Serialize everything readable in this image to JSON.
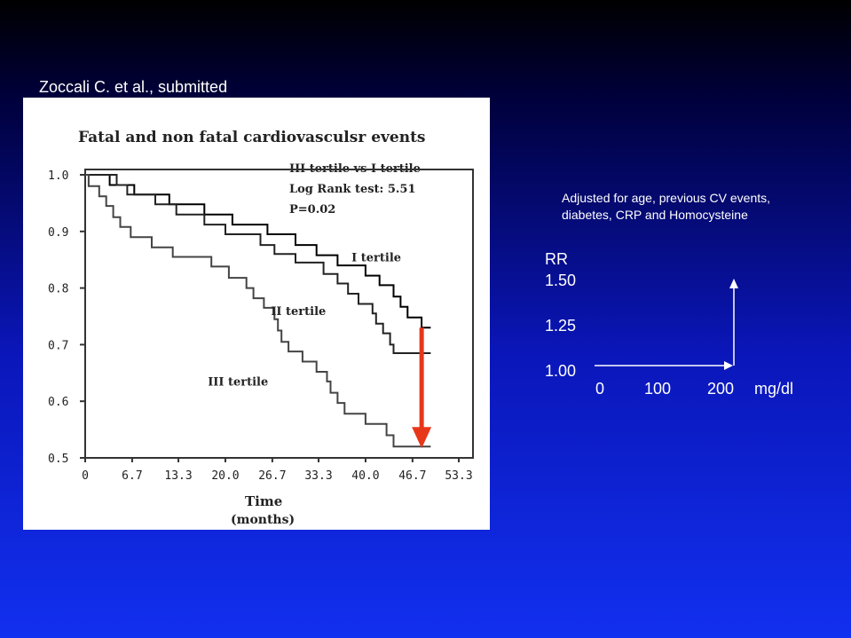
{
  "citation": "Zoccali  C. et al.,  submitted",
  "note_line1": "Adjusted  for age, previous CV events,",
  "note_line2": "diabetes, CRP and Homocysteine",
  "rr_panel": {
    "title": "RR",
    "y_ticks": [
      "1.50",
      "1.25",
      "1.00"
    ],
    "x_ticks": [
      "0",
      "100",
      "200",
      "mg/dl"
    ]
  },
  "chart_data": {
    "type": "line",
    "title": "Fatal and non fatal cardiovasculsr events",
    "xlabel": "Time",
    "xlabel_unit": "(months)",
    "xlim": [
      0,
      53.3
    ],
    "ylim": [
      0.5,
      1.0
    ],
    "x_ticks": [
      "0",
      "6.7",
      "13.3",
      "20.0",
      "26.7",
      "33.3",
      "40.0",
      "46.7",
      "53.3"
    ],
    "y_ticks": [
      "1.0",
      "0.9",
      "0.8",
      "0.7",
      "0.6",
      "0.5"
    ],
    "y_tick_values": [
      1.0,
      0.9,
      0.8,
      0.7,
      0.6,
      0.5
    ],
    "annotation": [
      "III tertile vs I tertile",
      "Log Rank test: 5.51",
      "P=0.02"
    ],
    "series": [
      {
        "name": "I tertile",
        "color": "#000000",
        "points": [
          [
            0,
            1.0
          ],
          [
            3.5,
            1.0
          ],
          [
            3.5,
            0.982
          ],
          [
            7,
            0.982
          ],
          [
            7,
            0.965
          ],
          [
            12,
            0.965
          ],
          [
            12,
            0.948
          ],
          [
            17,
            0.948
          ],
          [
            17,
            0.93
          ],
          [
            21,
            0.93
          ],
          [
            21,
            0.912
          ],
          [
            26,
            0.912
          ],
          [
            26,
            0.895
          ],
          [
            30,
            0.895
          ],
          [
            30,
            0.876
          ],
          [
            33,
            0.876
          ],
          [
            33,
            0.858
          ],
          [
            36,
            0.858
          ],
          [
            36,
            0.84
          ],
          [
            40,
            0.84
          ],
          [
            40,
            0.822
          ],
          [
            42,
            0.822
          ],
          [
            42,
            0.805
          ],
          [
            44,
            0.805
          ],
          [
            44,
            0.785
          ],
          [
            45,
            0.785
          ],
          [
            45,
            0.767
          ],
          [
            46,
            0.767
          ],
          [
            46,
            0.748
          ],
          [
            48,
            0.748
          ],
          [
            48,
            0.73
          ],
          [
            49.3,
            0.73
          ]
        ]
      },
      {
        "name": "II tertile",
        "color": "#222222",
        "points": [
          [
            0,
            1.0
          ],
          [
            4.5,
            1.0
          ],
          [
            4.5,
            0.982
          ],
          [
            6,
            0.982
          ],
          [
            6,
            0.965
          ],
          [
            10,
            0.965
          ],
          [
            10,
            0.948
          ],
          [
            13,
            0.948
          ],
          [
            13,
            0.93
          ],
          [
            17,
            0.93
          ],
          [
            17,
            0.912
          ],
          [
            20,
            0.912
          ],
          [
            20,
            0.895
          ],
          [
            25,
            0.895
          ],
          [
            25,
            0.876
          ],
          [
            27,
            0.876
          ],
          [
            27,
            0.86
          ],
          [
            30,
            0.86
          ],
          [
            30,
            0.845
          ],
          [
            34,
            0.845
          ],
          [
            34,
            0.825
          ],
          [
            36,
            0.825
          ],
          [
            36,
            0.808
          ],
          [
            37.5,
            0.808
          ],
          [
            37.5,
            0.79
          ],
          [
            39,
            0.79
          ],
          [
            39,
            0.772
          ],
          [
            41,
            0.772
          ],
          [
            41,
            0.755
          ],
          [
            41.5,
            0.755
          ],
          [
            41.5,
            0.737
          ],
          [
            42.5,
            0.737
          ],
          [
            42.5,
            0.72
          ],
          [
            43.5,
            0.72
          ],
          [
            43.5,
            0.7
          ],
          [
            44,
            0.7
          ],
          [
            44,
            0.685
          ],
          [
            49.3,
            0.685
          ]
        ]
      },
      {
        "name": "III tertile",
        "color": "#444444",
        "points": [
          [
            0,
            1.0
          ],
          [
            0.5,
            1.0
          ],
          [
            0.5,
            0.98
          ],
          [
            2,
            0.98
          ],
          [
            2,
            0.962
          ],
          [
            3,
            0.962
          ],
          [
            3,
            0.945
          ],
          [
            4,
            0.945
          ],
          [
            4,
            0.925
          ],
          [
            5,
            0.925
          ],
          [
            5,
            0.908
          ],
          [
            6.5,
            0.908
          ],
          [
            6.5,
            0.89
          ],
          [
            9.5,
            0.89
          ],
          [
            9.5,
            0.872
          ],
          [
            12.5,
            0.872
          ],
          [
            12.5,
            0.855
          ],
          [
            18,
            0.855
          ],
          [
            18,
            0.838
          ],
          [
            20.5,
            0.838
          ],
          [
            20.5,
            0.818
          ],
          [
            23,
            0.818
          ],
          [
            23,
            0.8
          ],
          [
            24,
            0.8
          ],
          [
            24,
            0.782
          ],
          [
            25.5,
            0.782
          ],
          [
            25.5,
            0.765
          ],
          [
            27,
            0.765
          ],
          [
            27,
            0.745
          ],
          [
            27.5,
            0.745
          ],
          [
            27.5,
            0.725
          ],
          [
            28,
            0.725
          ],
          [
            28,
            0.705
          ],
          [
            29,
            0.705
          ],
          [
            29,
            0.688
          ],
          [
            31,
            0.688
          ],
          [
            31,
            0.67
          ],
          [
            33,
            0.67
          ],
          [
            33,
            0.652
          ],
          [
            34.5,
            0.652
          ],
          [
            34.5,
            0.635
          ],
          [
            35,
            0.635
          ],
          [
            35,
            0.615
          ],
          [
            36,
            0.615
          ],
          [
            36,
            0.597
          ],
          [
            37,
            0.597
          ],
          [
            37,
            0.578
          ],
          [
            40,
            0.578
          ],
          [
            40,
            0.56
          ],
          [
            43,
            0.56
          ],
          [
            43,
            0.54
          ],
          [
            44,
            0.54
          ],
          [
            44,
            0.52
          ],
          [
            49.3,
            0.52
          ]
        ]
      }
    ],
    "series_labels": [
      {
        "text": "I tertile",
        "x": 38,
        "y": 0.847
      },
      {
        "text": "II tertile",
        "x": 26.5,
        "y": 0.752
      },
      {
        "text": "III tertile",
        "x": 17.5,
        "y": 0.628
      }
    ],
    "arrow": {
      "color": "#e8361a",
      "x": 48,
      "y_from": 0.73,
      "y_to": 0.52
    }
  }
}
